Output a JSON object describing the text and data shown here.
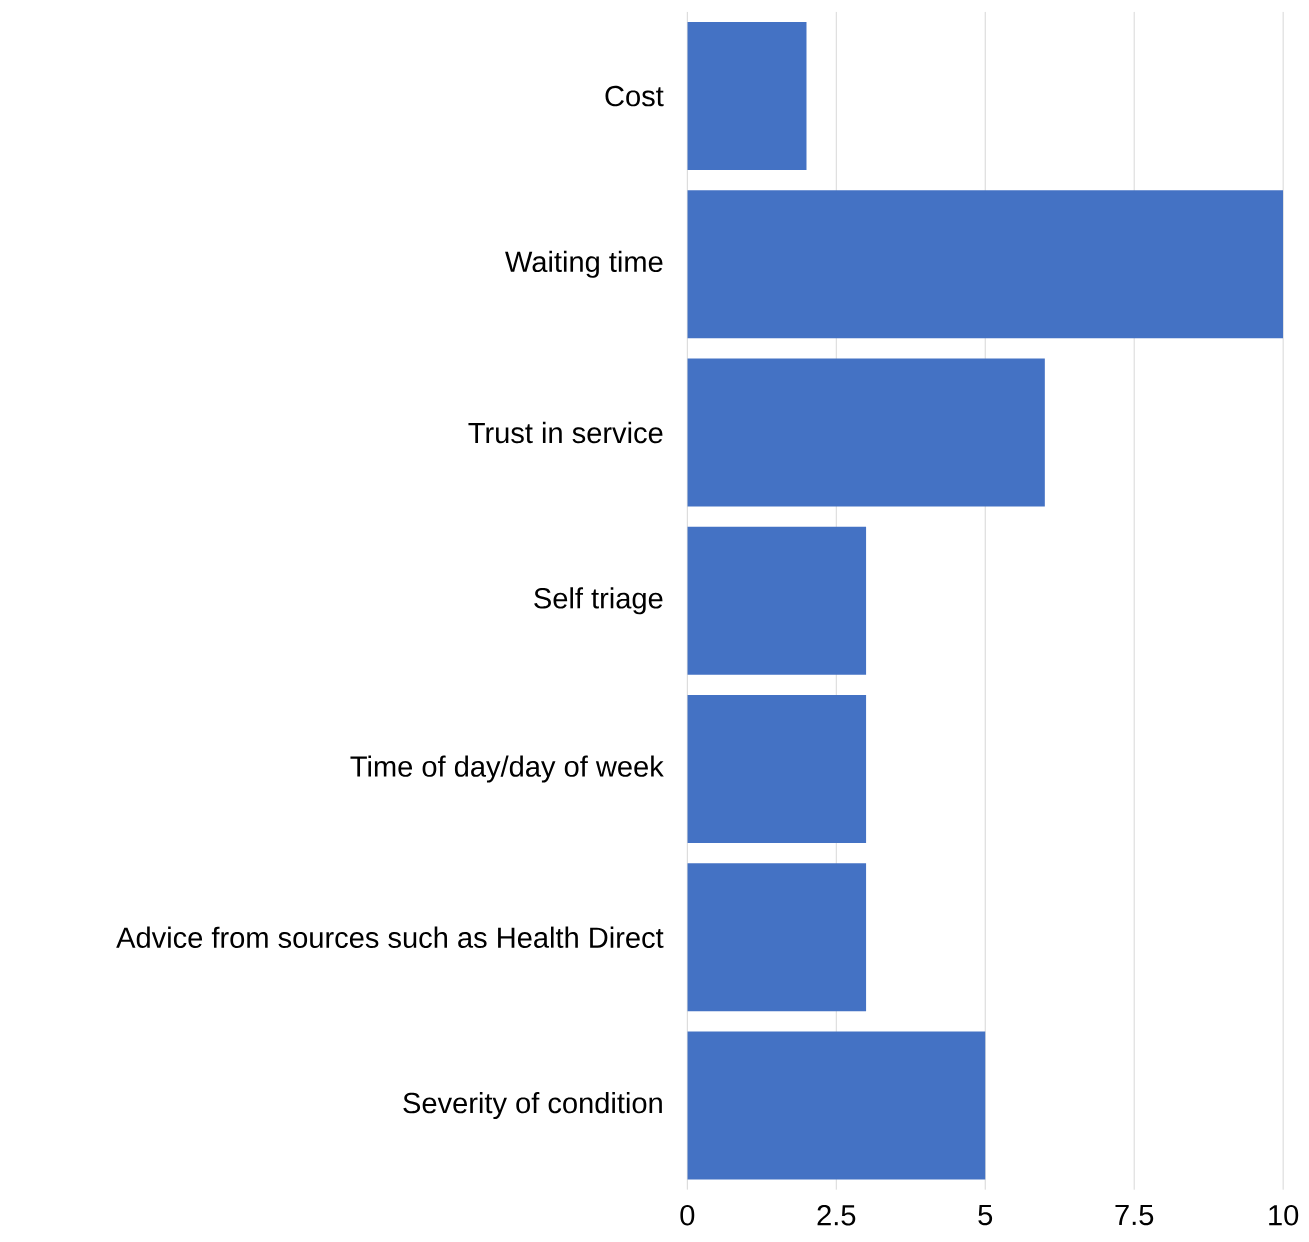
{
  "chart_data": {
    "type": "bar",
    "orientation": "horizontal",
    "categories": [
      "Cost",
      "Waiting time",
      "Trust in service",
      "Self triage",
      "Time of day/day of week",
      "Advice from sources such as Health Direct",
      "Severity of condition"
    ],
    "values": [
      2,
      10,
      6,
      3,
      3,
      3,
      5
    ],
    "color": "#4472c4",
    "xlim": [
      0,
      10
    ],
    "xticks": [
      0,
      2.5,
      5,
      7.5,
      10
    ],
    "grid": "x"
  }
}
